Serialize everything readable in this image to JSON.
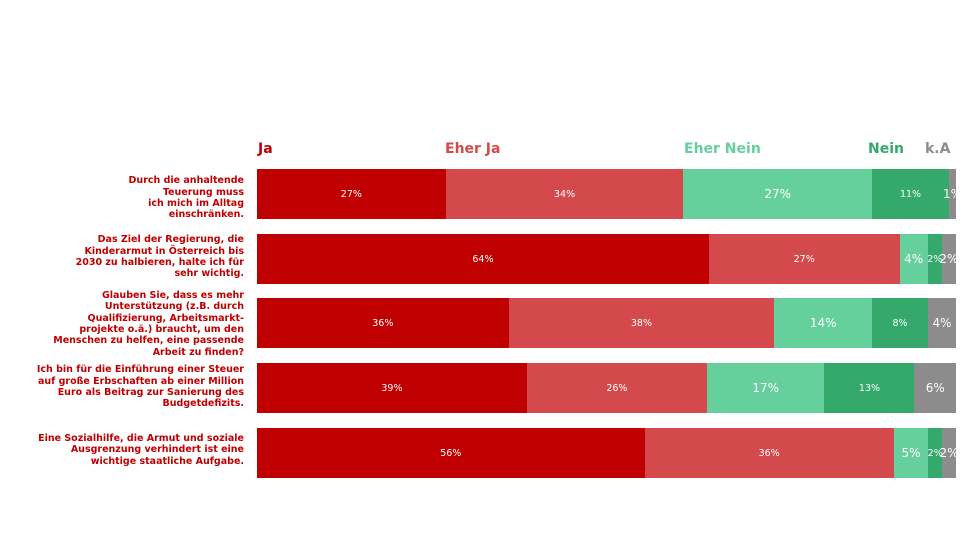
{
  "chart_data": {
    "type": "bar",
    "orientation": "horizontal",
    "stacked": true,
    "legend_position": "top",
    "grid": false,
    "categories": [
      "Durch die anhaltende Teuerung muss ich mich im Alltag einschränken.",
      "Das Ziel der Regierung, die Kinderarmut in Österreich bis 2030 zu halbieren, halte ich für sehr wichtig.",
      "Glauben Sie, dass es mehr Unterstützung (z.B. durch Qualifizierung, Arbeitsmarkt-projekte o.ä.) braucht, um den Menschen zu helfen, eine passende Arbeit zu finden?",
      "Ich bin für die Einführung einer Steuer auf große Erbschaften ab einer Million Euro als Beitrag zur Sanierung des Budgetdefizits.",
      "Eine Sozialhilfe, die Armut und soziale Ausgrenzung verhindert ist eine wichtige staatliche Aufgabe."
    ],
    "series": [
      {
        "name": "Ja",
        "color": "#c00000",
        "values": [
          27,
          64,
          36,
          39,
          56
        ]
      },
      {
        "name": "Eher Ja",
        "color": "#d44a4c",
        "values": [
          34,
          27,
          38,
          26,
          36
        ]
      },
      {
        "name": "Eher Nein",
        "color": "#66d09c",
        "values": [
          27,
          4,
          14,
          17,
          5
        ]
      },
      {
        "name": "Nein",
        "color": "#35a96c",
        "values": [
          11,
          2,
          8,
          13,
          2
        ]
      },
      {
        "name": "k.A",
        "color": "#8c8c8c",
        "values": [
          1,
          2,
          4,
          6,
          2
        ]
      }
    ],
    "value_suffix": "%"
  }
}
